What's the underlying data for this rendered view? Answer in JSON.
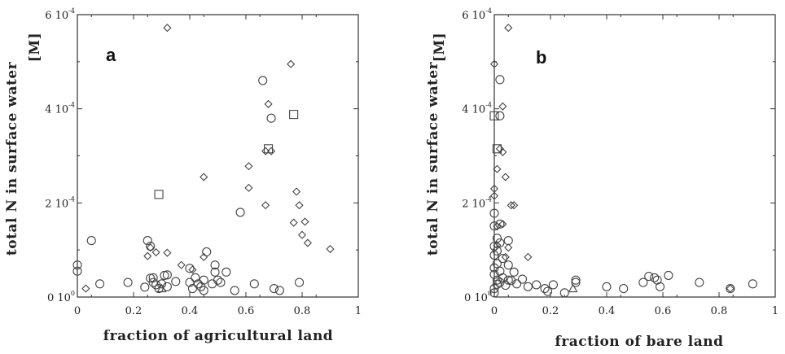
{
  "chart_data": [
    {
      "type": "scatter",
      "panel_label": "a",
      "xlabel": "fraction of agricultural land",
      "ylabel": "total N in surface water",
      "ylabel_unit": "[M]",
      "xlim": [
        0,
        1
      ],
      "ylim": [
        0,
        0.0006
      ],
      "x_ticks": [
        "0",
        "0.2",
        "0.4",
        "0.6",
        "0.8",
        "1"
      ],
      "y_ticks": [
        {
          "value": 0,
          "mantissa": "0",
          "exponent": "0"
        },
        {
          "value": 0.0002,
          "mantissa": "2",
          "exponent": "-4"
        },
        {
          "value": 0.0004,
          "mantissa": "4",
          "exponent": "-4"
        },
        {
          "value": 0.0006,
          "mantissa": "6",
          "exponent": "-4"
        }
      ],
      "series": [
        {
          "marker": "circle",
          "points": [
            [
              0.0,
              6.8e-05
            ],
            [
              0.0,
              5.5e-05
            ],
            [
              0.05,
              0.00012
            ],
            [
              0.08,
              2.8e-05
            ],
            [
              0.18,
              3.1e-05
            ],
            [
              0.24,
              2.1e-05
            ],
            [
              0.25,
              0.00012
            ],
            [
              0.26,
              0.000108
            ],
            [
              0.26,
              4e-05
            ],
            [
              0.27,
              4.1e-05
            ],
            [
              0.27,
              3.1e-05
            ],
            [
              0.28,
              2.6e-05
            ],
            [
              0.29,
              1.8e-05
            ],
            [
              0.3,
              2.8e-05
            ],
            [
              0.31,
              4.6e-05
            ],
            [
              0.32,
              4.7e-05
            ],
            [
              0.32,
              2.2e-05
            ],
            [
              0.35,
              3.3e-05
            ],
            [
              0.4,
              6.1e-05
            ],
            [
              0.4,
              3.1e-05
            ],
            [
              0.41,
              1.8e-05
            ],
            [
              0.42,
              4.1e-05
            ],
            [
              0.43,
              2.8e-05
            ],
            [
              0.44,
              2.2e-05
            ],
            [
              0.45,
              1.4e-05
            ],
            [
              0.45,
              3.6e-05
            ],
            [
              0.46,
              9.6e-05
            ],
            [
              0.48,
              2.8e-05
            ],
            [
              0.49,
              5.3e-05
            ],
            [
              0.49,
              6.8e-05
            ],
            [
              0.5,
              3.6e-05
            ],
            [
              0.51,
              3.1e-05
            ],
            [
              0.53,
              5.3e-05
            ],
            [
              0.56,
              1.4e-05
            ],
            [
              0.58,
              0.00018
            ],
            [
              0.63,
              2.8e-05
            ],
            [
              0.66,
              0.00046
            ],
            [
              0.69,
              0.00038
            ],
            [
              0.7,
              1.8e-05
            ],
            [
              0.72,
              1.4e-05
            ],
            [
              0.79,
              3.1e-05
            ]
          ]
        },
        {
          "marker": "diamond",
          "points": [
            [
              0.03,
              1.8e-05
            ],
            [
              0.25,
              8.7e-05
            ],
            [
              0.26,
              0.000105
            ],
            [
              0.28,
              9.5e-05
            ],
            [
              0.32,
              0.000572
            ],
            [
              0.32,
              9.4e-05
            ],
            [
              0.37,
              6.8e-05
            ],
            [
              0.41,
              5.8e-05
            ],
            [
              0.45,
              0.000255
            ],
            [
              0.45,
              8.5e-05
            ],
            [
              0.61,
              0.000278
            ],
            [
              0.61,
              0.000232
            ],
            [
              0.67,
              0.000195
            ],
            [
              0.67,
              0.00031
            ],
            [
              0.68,
              0.00041
            ],
            [
              0.69,
              0.00031
            ],
            [
              0.76,
              0.000495
            ],
            [
              0.77,
              0.000158
            ],
            [
              0.78,
              0.000224
            ],
            [
              0.79,
              0.000195
            ],
            [
              0.8,
              0.000132
            ],
            [
              0.81,
              0.00016
            ],
            [
              0.82,
              0.000115
            ],
            [
              0.9,
              0.000102
            ]
          ]
        },
        {
          "marker": "square",
          "points": [
            [
              0.29,
              0.000218
            ],
            [
              0.68,
              0.000315
            ],
            [
              0.77,
              0.000388
            ]
          ]
        },
        {
          "marker": "triangle",
          "points": [
            [
              0.3,
              1.8e-05
            ]
          ]
        }
      ]
    },
    {
      "type": "scatter",
      "panel_label": "b",
      "xlabel": "fraction of bare land",
      "ylabel": "total N in surface water",
      "ylabel_unit": "[M]",
      "xlim": [
        0,
        1
      ],
      "ylim": [
        0,
        0.0006
      ],
      "x_ticks": [
        "0",
        "0.2",
        "0.4",
        "0.6",
        "0.8",
        "1"
      ],
      "y_ticks": [
        {
          "value": 0,
          "mantissa": "0",
          "exponent": "0"
        },
        {
          "value": 0.0002,
          "mantissa": "2",
          "exponent": "-4"
        },
        {
          "value": 0.0004,
          "mantissa": "4",
          "exponent": "-4"
        },
        {
          "value": 0.0006,
          "mantissa": "6",
          "exponent": "-4"
        }
      ],
      "series": [
        {
          "marker": "circle",
          "points": [
            [
              0.0,
              0.000178
            ],
            [
              0.0,
              0.000151
            ],
            [
              0.0,
              0.000108
            ],
            [
              0.0,
              8.9e-05
            ],
            [
              0.0,
              6.2e-05
            ],
            [
              0.0,
              4.8e-05
            ],
            [
              0.0,
              1.8e-05
            ],
            [
              0.0,
              9e-06
            ],
            [
              0.01,
              0.000125
            ],
            [
              0.01,
              9.8e-05
            ],
            [
              0.01,
              7.1e-05
            ],
            [
              0.01,
              3.6e-05
            ],
            [
              0.01,
              2.7e-05
            ],
            [
              0.02,
              0.000462
            ],
            [
              0.02,
              0.000385
            ],
            [
              0.02,
              0.000155
            ],
            [
              0.02,
              0.000115
            ],
            [
              0.02,
              5.5e-05
            ],
            [
              0.02,
              3.1e-05
            ],
            [
              0.03,
              8.2e-05
            ],
            [
              0.03,
              4.1e-05
            ],
            [
              0.04,
              2.5e-05
            ],
            [
              0.05,
              0.00012
            ],
            [
              0.05,
              6.8e-05
            ],
            [
              0.05,
              3.6e-05
            ],
            [
              0.06,
              3.5e-05
            ],
            [
              0.07,
              5.3e-05
            ],
            [
              0.08,
              2.8e-05
            ],
            [
              0.1,
              3.8e-05
            ],
            [
              0.12,
              2.2e-05
            ],
            [
              0.15,
              2.6e-05
            ],
            [
              0.18,
              1.8e-05
            ],
            [
              0.19,
              1.2e-05
            ],
            [
              0.21,
              2.6e-05
            ],
            [
              0.25,
              9e-06
            ],
            [
              0.29,
              3.1e-05
            ],
            [
              0.29,
              3.6e-05
            ],
            [
              0.4,
              2.2e-05
            ],
            [
              0.46,
              1.8e-05
            ],
            [
              0.53,
              3.1e-05
            ],
            [
              0.55,
              4.4e-05
            ],
            [
              0.57,
              4.1e-05
            ],
            [
              0.58,
              3.6e-05
            ],
            [
              0.59,
              2.2e-05
            ],
            [
              0.62,
              4.6e-05
            ],
            [
              0.73,
              3.1e-05
            ],
            [
              0.84,
              1.8e-05
            ],
            [
              0.92,
              2.8e-05
            ]
          ]
        },
        {
          "marker": "diamond",
          "points": [
            [
              0.0,
              0.000495
            ],
            [
              0.0,
              0.00023
            ],
            [
              0.0,
              0.000215
            ],
            [
              0.01,
              0.000272
            ],
            [
              0.01,
              0.00015
            ],
            [
              0.01,
              0.00011
            ],
            [
              0.02,
              0.000315
            ],
            [
              0.03,
              0.000405
            ],
            [
              0.03,
              0.000308
            ],
            [
              0.03,
              0.000155
            ],
            [
              0.04,
              0.000255
            ],
            [
              0.04,
              8.5e-05
            ],
            [
              0.05,
              0.000572
            ],
            [
              0.05,
              0.000105
            ],
            [
              0.06,
              0.000195
            ],
            [
              0.07,
              0.000195
            ],
            [
              0.12,
              8.5e-05
            ],
            [
              0.84,
              1.8e-05
            ]
          ]
        },
        {
          "marker": "square",
          "points": [
            [
              0.0,
              0.000385
            ],
            [
              0.01,
              0.000315
            ]
          ]
        },
        {
          "marker": "triangle",
          "points": [
            [
              0.28,
              1.8e-05
            ]
          ]
        }
      ]
    }
  ]
}
